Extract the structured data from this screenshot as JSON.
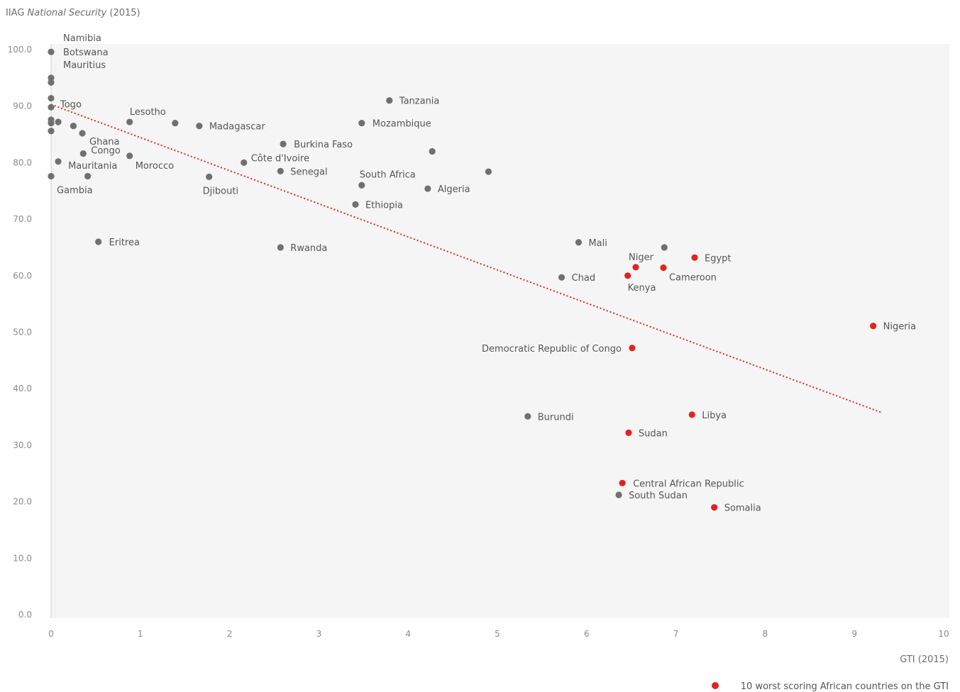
{
  "chart_data": {
    "type": "scatter",
    "title_prefix": "IIAG",
    "title_italic": "National Security",
    "title_suffix": "(2015)",
    "xlabel": "GTI (2015)",
    "xlim": [
      0,
      10
    ],
    "ylim": [
      0,
      100
    ],
    "xticks": [
      "0",
      "1",
      "2",
      "3",
      "4",
      "5",
      "6",
      "7",
      "8",
      "9",
      "10"
    ],
    "yticks": [
      "0.0",
      "10.0",
      "20.0",
      "30.0",
      "40.0",
      "50.0",
      "60.0",
      "70.0",
      "80.0",
      "90.0",
      "100.0"
    ],
    "grid": false,
    "colors": {
      "normal": "#707070",
      "highlight": "#e32320",
      "trend": "#d62b27",
      "plot_bg": "#f5f5f5"
    },
    "legend": {
      "text": "10 worst scoring African countries on the GTI",
      "position": "bottom-right"
    },
    "trendline": {
      "x": [
        0,
        9.3
      ],
      "y": [
        90.3,
        35.8
      ]
    },
    "points": [
      {
        "x": 0,
        "y": 99.6,
        "label": "",
        "highlight": false
      },
      {
        "x": 0,
        "y": 95.0,
        "label": "",
        "highlight": false
      },
      {
        "x": 0,
        "y": 94.2,
        "label": "",
        "highlight": false
      },
      {
        "x": 0,
        "y": 91.4,
        "label": "",
        "highlight": false
      },
      {
        "x": 0,
        "y": 89.8,
        "label": "",
        "highlight": false
      },
      {
        "x": 0,
        "y": 87.6,
        "label": "",
        "highlight": false
      },
      {
        "x": 0,
        "y": 87.0,
        "label": "",
        "highlight": false
      },
      {
        "x": 0,
        "y": 85.6,
        "label": "",
        "highlight": false
      },
      {
        "x": 0,
        "y": 77.6,
        "label": "",
        "highlight": false
      },
      {
        "x": 0.08,
        "y": 80.2,
        "label": "",
        "highlight": false
      },
      {
        "x": 0.08,
        "y": 87.2,
        "label": "",
        "highlight": false
      },
      {
        "x": 0.25,
        "y": 86.5,
        "label": "",
        "highlight": false
      },
      {
        "x": 0.35,
        "y": 85.2,
        "label": "",
        "highlight": false
      },
      {
        "x": 0.36,
        "y": 81.6,
        "label": "",
        "highlight": false
      },
      {
        "x": 0.41,
        "y": 77.6,
        "label": "",
        "highlight": false
      },
      {
        "x": 0.53,
        "y": 66.0,
        "label": "Eritrea",
        "highlight": false
      },
      {
        "x": 0.88,
        "y": 87.2,
        "label": "",
        "highlight": false
      },
      {
        "x": 0.88,
        "y": 81.2,
        "label": "",
        "highlight": false
      },
      {
        "x": 1.39,
        "y": 87.0,
        "label": "",
        "highlight": false
      },
      {
        "x": 1.66,
        "y": 86.5,
        "label": "Madagascar",
        "highlight": false
      },
      {
        "x": 1.77,
        "y": 77.5,
        "label": "",
        "highlight": false
      },
      {
        "x": 2.16,
        "y": 80.0,
        "label": "",
        "highlight": false
      },
      {
        "x": 2.57,
        "y": 78.5,
        "label": "Senegal",
        "highlight": false
      },
      {
        "x": 2.57,
        "y": 65.0,
        "label": "Rwanda",
        "highlight": false
      },
      {
        "x": 2.6,
        "y": 83.3,
        "label": "Burkina Faso",
        "highlight": false
      },
      {
        "x": 3.41,
        "y": 72.6,
        "label": "Ethiopia",
        "highlight": false
      },
      {
        "x": 3.48,
        "y": 76.0,
        "label": "",
        "highlight": false
      },
      {
        "x": 3.48,
        "y": 87.0,
        "label": "Mozambique",
        "highlight": false
      },
      {
        "x": 3.79,
        "y": 91.0,
        "label": "Tanzania",
        "highlight": false
      },
      {
        "x": 4.22,
        "y": 75.4,
        "label": "Algeria",
        "highlight": false
      },
      {
        "x": 4.27,
        "y": 82.0,
        "label": "",
        "highlight": false
      },
      {
        "x": 4.9,
        "y": 78.4,
        "label": "",
        "highlight": false
      },
      {
        "x": 5.34,
        "y": 35.1,
        "label": "Burundi",
        "highlight": false
      },
      {
        "x": 5.72,
        "y": 59.7,
        "label": "Chad",
        "highlight": false
      },
      {
        "x": 5.91,
        "y": 65.9,
        "label": "Mali",
        "highlight": false
      },
      {
        "x": 6.36,
        "y": 21.2,
        "label": "South Sudan",
        "highlight": false
      },
      {
        "x": 6.87,
        "y": 65.0,
        "label": "",
        "highlight": false
      },
      {
        "x": 6.4,
        "y": 23.3,
        "label": "Central African Republic",
        "highlight": true
      },
      {
        "x": 6.46,
        "y": 60.0,
        "label": "",
        "highlight": true
      },
      {
        "x": 6.47,
        "y": 32.2,
        "label": "Sudan",
        "highlight": true
      },
      {
        "x": 6.51,
        "y": 47.2,
        "label": "Democratic Republic of Congo",
        "highlight": true
      },
      {
        "x": 6.55,
        "y": 61.5,
        "label": "",
        "highlight": true
      },
      {
        "x": 6.86,
        "y": 61.4,
        "label": "Cameroon",
        "highlight": true
      },
      {
        "x": 7.18,
        "y": 35.4,
        "label": "Libya",
        "highlight": true
      },
      {
        "x": 7.21,
        "y": 63.2,
        "label": "Egypt",
        "highlight": true
      },
      {
        "x": 7.43,
        "y": 19.0,
        "label": "Somalia",
        "highlight": true
      },
      {
        "x": 9.21,
        "y": 51.1,
        "label": "Nigeria",
        "highlight": true
      }
    ],
    "annotations": [
      {
        "text": "Namibia",
        "x": 0,
        "y": 99.6
      },
      {
        "text": "Botswana",
        "x": 0,
        "y": 99.6
      },
      {
        "text": "Mauritius",
        "x": 0,
        "y": 99.6
      },
      {
        "text": "Togo",
        "x": 0,
        "y": 89.8
      },
      {
        "text": "Lesotho",
        "x": 0.88,
        "y": 87.2
      },
      {
        "text": "Ghana",
        "x": 0.35,
        "y": 85.2
      },
      {
        "text": "Congo",
        "x": 0.36,
        "y": 81.6
      },
      {
        "text": "Mauritania",
        "x": 0.08,
        "y": 80.2
      },
      {
        "text": "Morocco",
        "x": 0.88,
        "y": 81.2
      },
      {
        "text": "Gambia",
        "x": 0,
        "y": 77.6
      },
      {
        "text": "Djibouti",
        "x": 1.77,
        "y": 77.5
      },
      {
        "text": "Côte d'Ivoire",
        "x": 2.16,
        "y": 80.0
      },
      {
        "text": "South Africa",
        "x": 3.48,
        "y": 76.0
      },
      {
        "text": "Niger",
        "x": 6.55,
        "y": 61.5
      },
      {
        "text": "Kenya",
        "x": 6.46,
        "y": 60.0
      }
    ]
  }
}
